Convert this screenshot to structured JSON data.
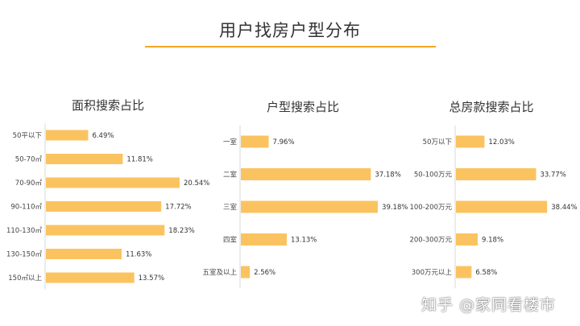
{
  "page": {
    "title": "用户找房户型分布",
    "watermark": "知乎 @家同看楼市"
  },
  "colors": {
    "bar": "#FBC360",
    "rule": "#F5A623",
    "text": "#444444"
  },
  "chart_data": [
    {
      "type": "bar",
      "orientation": "horizontal",
      "title": "面积搜索占比",
      "categories": [
        "50平以下",
        "50-70㎡",
        "70-90㎡",
        "90-110㎡",
        "110-130㎡",
        "130-150㎡",
        "150㎡以上"
      ],
      "values": [
        6.49,
        11.81,
        20.54,
        17.72,
        18.23,
        11.63,
        13.57
      ],
      "labels": [
        "6.49%",
        "11.81%",
        "20.54%",
        "17.72%",
        "18.23%",
        "11.63%",
        "13.57%"
      ],
      "unit": "%"
    },
    {
      "type": "bar",
      "orientation": "horizontal",
      "title": "户型搜索占比",
      "categories": [
        "一室",
        "二室",
        "三室",
        "四室",
        "五室及以上"
      ],
      "values": [
        7.96,
        37.18,
        39.18,
        13.13,
        2.56
      ],
      "labels": [
        "7.96%",
        "37.18%",
        "39.18%",
        "13.13%",
        "2.56%"
      ],
      "unit": "%"
    },
    {
      "type": "bar",
      "orientation": "horizontal",
      "title": "总房款搜索占比",
      "categories": [
        "50万以下",
        "50-100万元",
        "100-200万元",
        "200-300万元",
        "300万元以上"
      ],
      "values": [
        12.03,
        33.77,
        38.44,
        9.18,
        6.58
      ],
      "labels": [
        "12.03%",
        "33.77%",
        "38.44%",
        "9.18%",
        "6.58%"
      ],
      "unit": "%"
    }
  ]
}
